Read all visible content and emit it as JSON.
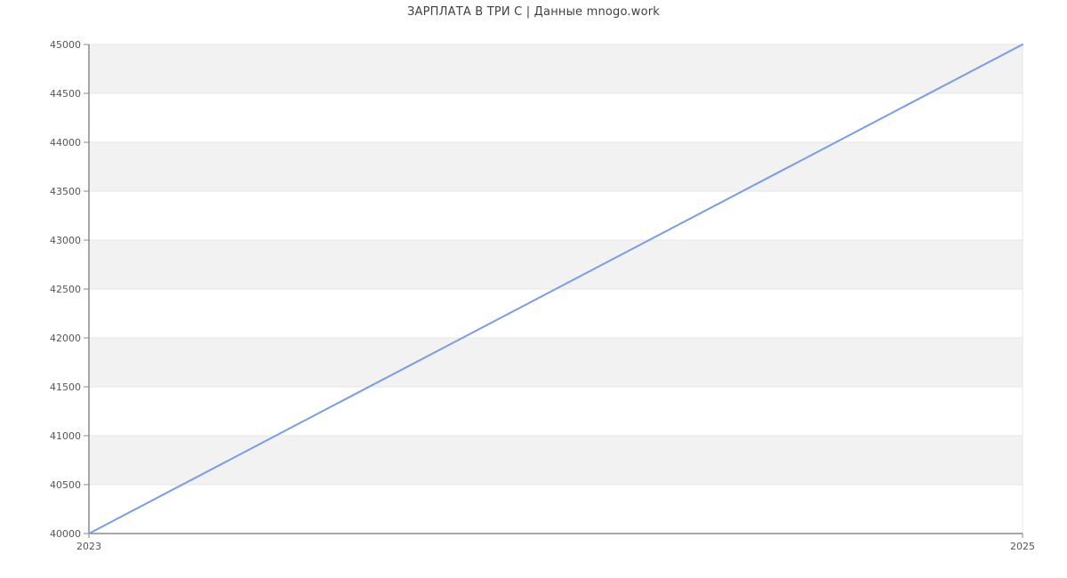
{
  "chart_data": {
    "type": "line",
    "title": "ЗАРПЛАТА В ТРИ С | Данные mnogo.work",
    "x": [
      2023,
      2025
    ],
    "series": [
      {
        "values": [
          40000,
          45000
        ]
      }
    ],
    "xlabel": "",
    "ylabel": "",
    "xlim": [
      2023,
      2025
    ],
    "ylim": [
      40000,
      45000
    ],
    "yticks": [
      40000,
      40500,
      41000,
      41500,
      42000,
      42500,
      43000,
      43500,
      44000,
      44500,
      45000
    ],
    "ytick_labels": [
      "40000",
      "40500",
      "41000",
      "41500",
      "42000",
      "42500",
      "43000",
      "43500",
      "44000",
      "44500",
      "45000"
    ],
    "xtick_values": [
      2023,
      2025
    ],
    "xtick_labels": [
      "2023",
      "2025"
    ],
    "grid": "horizontal-only",
    "alternate_band_rows": true,
    "legend": "none",
    "colors": {
      "series_line": "#7a9de8",
      "band_fill": "#f2f2f2",
      "gridline": "#e6e6e6",
      "plot_right_border": "#e6e6e6",
      "axis_line": "#8a8a8a",
      "tick_label": "#555555",
      "title_text": "#3f3f3f",
      "background": "#ffffff"
    }
  }
}
